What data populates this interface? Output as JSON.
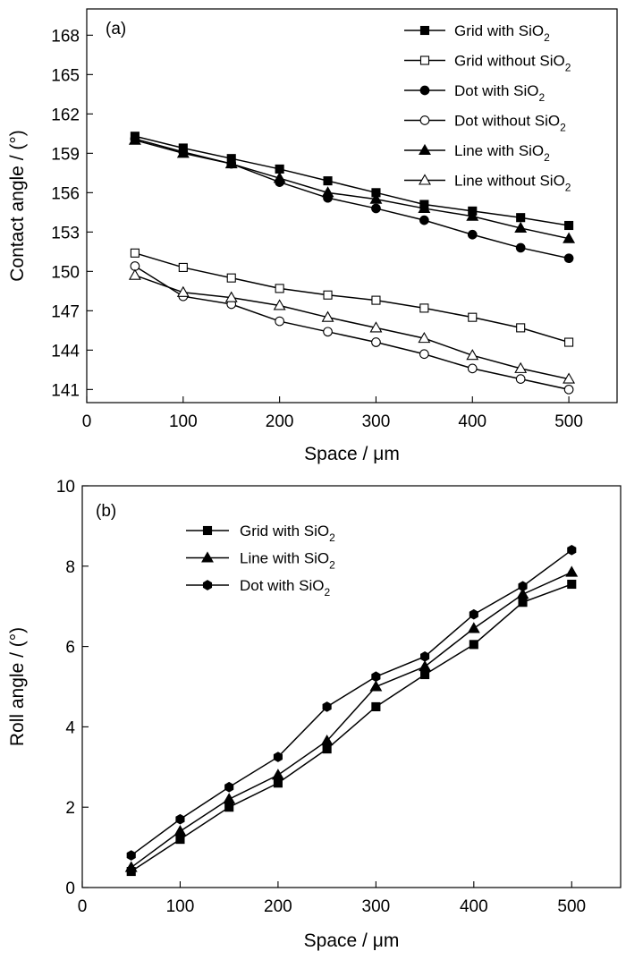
{
  "chart_data": [
    {
      "panel_label": "(a)",
      "type": "line",
      "xlabel": "Space / μm",
      "ylabel": "Contact angle / (°)",
      "xlim": [
        0,
        550
      ],
      "ylim": [
        140,
        170
      ],
      "xticks": [
        0,
        100,
        200,
        300,
        400,
        500
      ],
      "yticks": [
        141,
        144,
        147,
        150,
        153,
        156,
        159,
        162,
        165,
        168
      ],
      "legend_position": "top-right",
      "x": [
        50,
        100,
        150,
        200,
        250,
        300,
        350,
        400,
        450,
        500
      ],
      "series": [
        {
          "name": "Grid with SiO2",
          "label_main": "Grid with SiO",
          "label_sub": "2",
          "marker": "square",
          "filled": true,
          "values": [
            160.3,
            159.4,
            158.6,
            157.8,
            156.9,
            156.0,
            155.1,
            154.6,
            154.1,
            153.5
          ]
        },
        {
          "name": "Grid without SiO2",
          "label_main": "Grid without SiO",
          "label_sub": "2",
          "marker": "square",
          "filled": false,
          "values": [
            151.4,
            150.3,
            149.5,
            148.7,
            148.2,
            147.8,
            147.2,
            146.5,
            145.7,
            144.6
          ]
        },
        {
          "name": "Dot with SiO2",
          "label_main": "Dot with SiO",
          "label_sub": "2",
          "marker": "circle",
          "filled": true,
          "values": [
            160.1,
            159.1,
            158.2,
            156.8,
            155.6,
            154.8,
            153.9,
            152.8,
            151.8,
            151.0
          ]
        },
        {
          "name": "Dot without SiO2",
          "label_main": "Dot without SiO",
          "label_sub": "2",
          "marker": "circle",
          "filled": false,
          "values": [
            150.4,
            148.1,
            147.5,
            146.2,
            145.4,
            144.6,
            143.7,
            142.6,
            141.8,
            141.0
          ]
        },
        {
          "name": "Line with SiO2",
          "label_main": "Line with SiO",
          "label_sub": "2",
          "marker": "triangle",
          "filled": true,
          "values": [
            160.0,
            159.0,
            158.2,
            157.1,
            156.0,
            155.5,
            154.8,
            154.2,
            153.3,
            152.5
          ]
        },
        {
          "name": "Line without SiO2",
          "label_main": "Line without SiO",
          "label_sub": "2",
          "marker": "triangle",
          "filled": false,
          "values": [
            149.7,
            148.4,
            148.0,
            147.4,
            146.5,
            145.7,
            144.9,
            143.6,
            142.6,
            141.8
          ]
        }
      ]
    },
    {
      "panel_label": "(b)",
      "type": "line",
      "xlabel": "Space / μm",
      "ylabel": "Roll angle / (°)",
      "xlim": [
        0,
        550
      ],
      "ylim": [
        0,
        10
      ],
      "xticks": [
        0,
        100,
        200,
        300,
        400,
        500
      ],
      "yticks": [
        0,
        2,
        4,
        6,
        8,
        10
      ],
      "legend_position": "top-left",
      "x": [
        50,
        100,
        150,
        200,
        250,
        300,
        350,
        400,
        450,
        500
      ],
      "series": [
        {
          "name": "Grid with SiO2",
          "label_main": "Grid with SiO",
          "label_sub": "2",
          "marker": "square",
          "filled": true,
          "values": [
            0.4,
            1.2,
            2.0,
            2.6,
            3.45,
            4.5,
            5.3,
            6.05,
            7.1,
            7.55
          ]
        },
        {
          "name": "Line with SiO2",
          "label_main": "Line with SiO",
          "label_sub": "2",
          "marker": "triangle",
          "filled": true,
          "values": [
            0.5,
            1.4,
            2.2,
            2.8,
            3.65,
            5.0,
            5.5,
            6.45,
            7.3,
            7.85
          ]
        },
        {
          "name": "Dot with SiO2",
          "label_main": "Dot with SiO",
          "label_sub": "2",
          "marker": "hexagon",
          "filled": true,
          "values": [
            0.8,
            1.7,
            2.5,
            3.25,
            4.5,
            5.25,
            5.75,
            6.8,
            7.5,
            8.4
          ]
        }
      ]
    }
  ]
}
